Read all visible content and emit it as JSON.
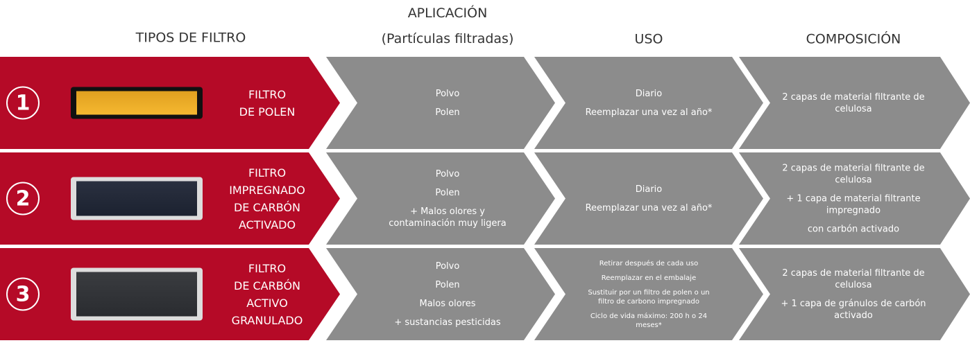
{
  "header": {
    "tipos": "TIPOS DE FILTRO",
    "aplicacion": [
      "APLICACIÓN",
      "(Partículas filtradas)"
    ],
    "uso": "USO",
    "composicion": "COMPOSICIÓN"
  },
  "rows": [
    {
      "number": "1",
      "name": [
        "FILTRO",
        "DE POLEN"
      ],
      "aplicacion": [
        "Polvo",
        "Polen"
      ],
      "uso": [
        "Diario",
        "Reemplazar una vez al año*"
      ],
      "composicion": [
        "2 capas de material filtrante de celulosa"
      ]
    },
    {
      "number": "2",
      "name": [
        "FILTRO",
        "IMPREGNADO",
        "DE CARBÓN",
        "ACTIVADO"
      ],
      "aplicacion": [
        "Polvo",
        "Polen",
        "+ Malos olores y contaminación muy ligera"
      ],
      "uso": [
        "Diario",
        "Reemplazar una vez al año*"
      ],
      "composicion": [
        "2 capas de material filtrante de celulosa",
        "+ 1 capa de material filtrante impregnado",
        "con carbón activado"
      ]
    },
    {
      "number": "3",
      "name": [
        "FILTRO",
        "DE CARBÓN",
        "ACTIVO",
        "GRANULADO"
      ],
      "aplicacion": [
        "Polvo",
        "Polen",
        "Malos olores",
        "+ sustancias pesticidas"
      ],
      "uso": [
        "Retirar después de cada uso",
        "Reemplazar en el embalaje",
        "Sustituir por un filtro de polen o un filtro de carbono impregnado",
        "Ciclo de vida máximo: 200 h o 24 meses*"
      ],
      "composicion": [
        "2 capas de material filtrante de celulosa",
        "+ 1 capa de gránulos de carbón activado"
      ]
    }
  ]
}
